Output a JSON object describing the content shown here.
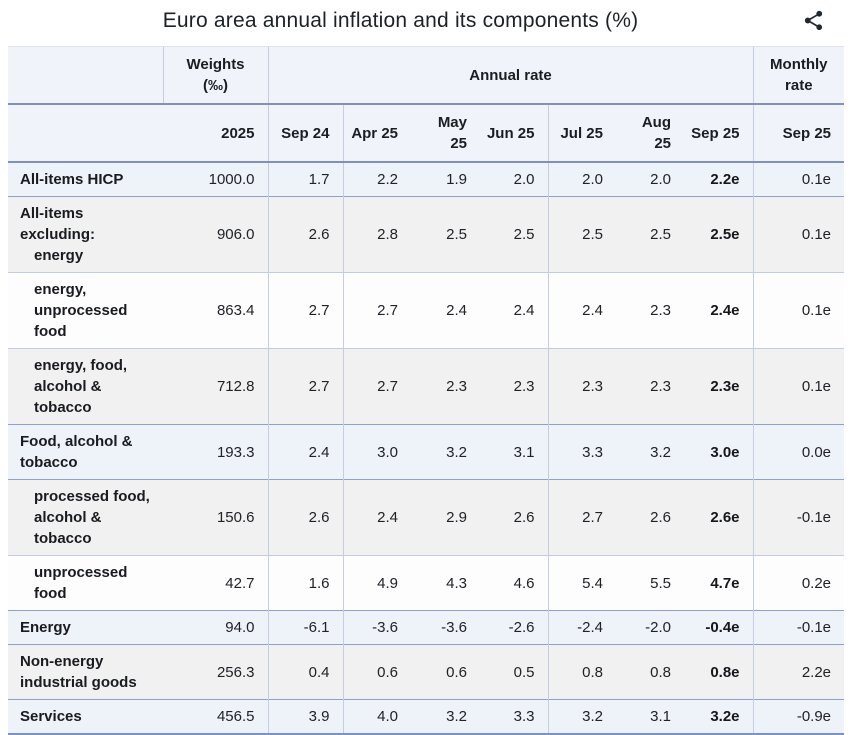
{
  "title": "Euro area annual inflation and its components (%)",
  "share": {
    "icon": "share-icon"
  },
  "table": {
    "header": {
      "weights_line1": "Weights",
      "weights_line2": "(‰)",
      "annual_rate": "Annual rate",
      "monthly_rate": "Monthly rate"
    }
  },
  "colors": {
    "header_bg": "#f0f3fa",
    "row_blue": "#eef2f9",
    "row_gray": "#f1f1f2",
    "row_white": "#fdfdfe",
    "rule_heavy": "#7b91c8",
    "rule_strong": "#8fa0cb",
    "rule_light": "#c2cbdf",
    "divider": "#c5cddf",
    "text": "#1b1d21"
  },
  "chart_data": {
    "type": "table",
    "title": "Euro area annual inflation and its components (%)",
    "columns": {
      "weights_year": "2025",
      "annual": [
        "Sep 24",
        "Apr 25",
        "May 25",
        "Jun 25",
        "Jul 25",
        "Aug 25",
        "Sep 25"
      ],
      "monthly": "Sep 25"
    },
    "rows": [
      {
        "label": "All-items HICP",
        "label_lines": [
          {
            "text": "All-items HICP",
            "indent": false
          }
        ],
        "weight": "1000.0",
        "annual": [
          "1.7",
          "2.2",
          "1.9",
          "2.0",
          "2.0",
          "2.0",
          "2.2e"
        ],
        "monthly": "0.1e",
        "bg": "blue",
        "sep_top": "none"
      },
      {
        "label": "All-items excluding: energy",
        "label_lines": [
          {
            "text": "All-items excluding:",
            "indent": false
          },
          {
            "text": "energy",
            "indent": true
          }
        ],
        "weight": "906.0",
        "annual": [
          "2.6",
          "2.8",
          "2.5",
          "2.5",
          "2.5",
          "2.5",
          "2.5e"
        ],
        "monthly": "0.1e",
        "bg": "gray",
        "sep_top": "strong"
      },
      {
        "label": "energy, unprocessed food",
        "label_lines": [
          {
            "text": "energy,",
            "indent": true
          },
          {
            "text": "unprocessed food",
            "indent": true
          }
        ],
        "weight": "863.4",
        "annual": [
          "2.7",
          "2.7",
          "2.4",
          "2.4",
          "2.4",
          "2.3",
          "2.4e"
        ],
        "monthly": "0.1e",
        "bg": "white",
        "sep_top": "light"
      },
      {
        "label": "energy, food, alcohol & tobacco",
        "label_lines": [
          {
            "text": "energy, food,",
            "indent": true
          },
          {
            "text": "alcohol & tobacco",
            "indent": true
          }
        ],
        "weight": "712.8",
        "annual": [
          "2.7",
          "2.7",
          "2.3",
          "2.3",
          "2.3",
          "2.3",
          "2.3e"
        ],
        "monthly": "0.1e",
        "bg": "gray",
        "sep_top": "light"
      },
      {
        "label": "Food, alcohol & tobacco",
        "label_lines": [
          {
            "text": "Food, alcohol &",
            "indent": false
          },
          {
            "text": "tobacco",
            "indent": false
          }
        ],
        "weight": "193.3",
        "annual": [
          "2.4",
          "3.0",
          "3.2",
          "3.1",
          "3.3",
          "3.2",
          "3.0e"
        ],
        "monthly": "0.0e",
        "bg": "blue",
        "sep_top": "strong"
      },
      {
        "label": "processed food, alcohol & tobacco",
        "label_lines": [
          {
            "text": "processed food,",
            "indent": true
          },
          {
            "text": "alcohol & tobacco",
            "indent": true
          }
        ],
        "weight": "150.6",
        "annual": [
          "2.6",
          "2.4",
          "2.9",
          "2.6",
          "2.7",
          "2.6",
          "2.6e"
        ],
        "monthly": "-0.1e",
        "bg": "gray",
        "sep_top": "strong"
      },
      {
        "label": "unprocessed food",
        "label_lines": [
          {
            "text": "unprocessed food",
            "indent": true
          }
        ],
        "weight": "42.7",
        "annual": [
          "1.6",
          "4.9",
          "4.3",
          "4.6",
          "5.4",
          "5.5",
          "4.7e"
        ],
        "monthly": "0.2e",
        "bg": "white",
        "sep_top": "light"
      },
      {
        "label": "Energy",
        "label_lines": [
          {
            "text": "Energy",
            "indent": false
          }
        ],
        "weight": "94.0",
        "annual": [
          "-6.1",
          "-3.6",
          "-3.6",
          "-2.6",
          "-2.4",
          "-2.0",
          "-0.4e"
        ],
        "monthly": "-0.1e",
        "bg": "blue",
        "sep_top": "strong"
      },
      {
        "label": "Non-energy industrial goods",
        "label_lines": [
          {
            "text": "Non-energy",
            "indent": false
          },
          {
            "text": "industrial goods",
            "indent": false
          }
        ],
        "weight": "256.3",
        "annual": [
          "0.4",
          "0.6",
          "0.6",
          "0.5",
          "0.8",
          "0.8",
          "0.8e"
        ],
        "monthly": "2.2e",
        "bg": "gray",
        "sep_top": "strong"
      },
      {
        "label": "Services",
        "label_lines": [
          {
            "text": "Services",
            "indent": false
          }
        ],
        "weight": "456.5",
        "annual": [
          "3.9",
          "4.0",
          "3.2",
          "3.3",
          "3.2",
          "3.1",
          "3.2e"
        ],
        "monthly": "-0.9e",
        "bg": "blue",
        "sep_top": "strong"
      }
    ]
  }
}
